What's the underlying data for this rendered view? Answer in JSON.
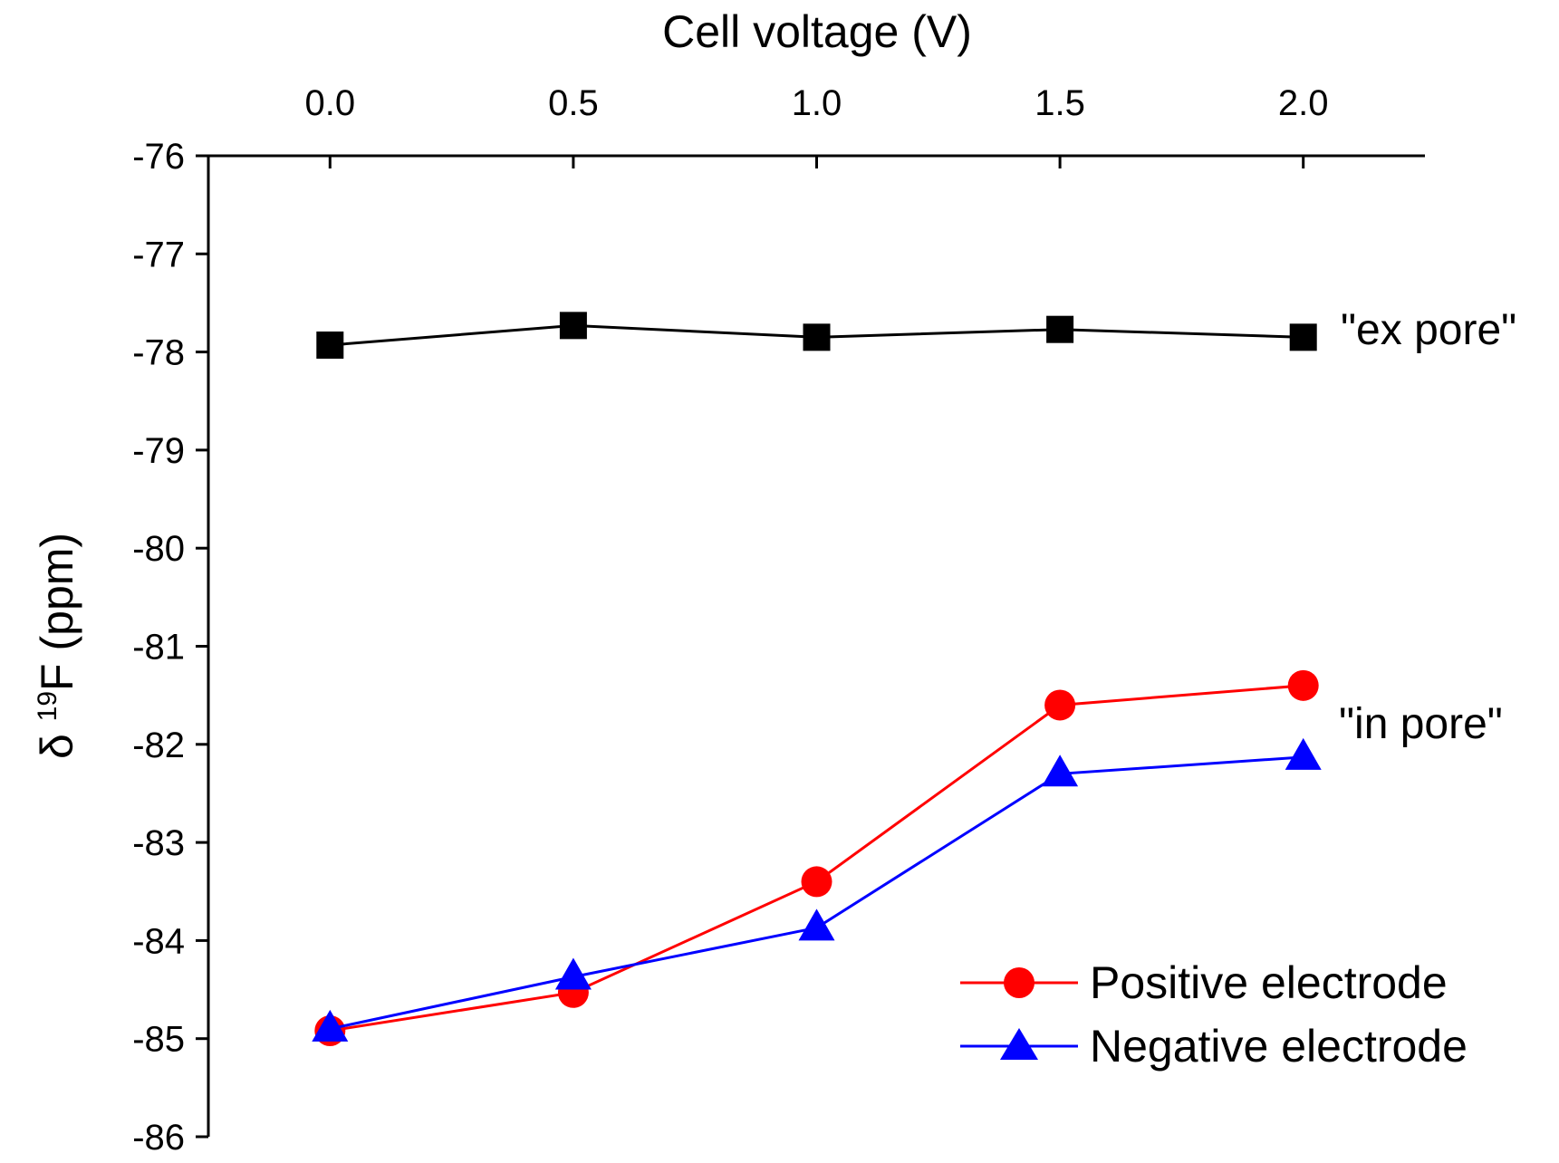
{
  "chart_data": {
    "type": "line",
    "xlabel": "Cell voltage (V)",
    "ylabel_prefix": "δ ",
    "ylabel_sup": "19",
    "ylabel_main": "F (ppm)",
    "xlim": [
      -0.25,
      2.25
    ],
    "ylim": [
      -86,
      -76
    ],
    "x_ticks": [
      "0.0",
      "0.5",
      "1.0",
      "1.5",
      "2.0"
    ],
    "y_ticks": [
      "-76",
      "-77",
      "-78",
      "-79",
      "-80",
      "-81",
      "-82",
      "-83",
      "-84",
      "-85",
      "-86"
    ],
    "x": [
      0.0,
      0.5,
      1.0,
      1.5,
      2.0
    ],
    "series": [
      {
        "values": [
          -77.93,
          -77.73,
          -77.85,
          -77.77,
          -77.85
        ],
        "color": "#000000",
        "marker": "square"
      },
      {
        "name": "Positive electrode",
        "values": [
          -84.92,
          -84.53,
          -83.4,
          -81.6,
          -81.4
        ],
        "color": "#ff0000",
        "marker": "circle"
      },
      {
        "name": "Negative electrode",
        "values": [
          -84.9,
          -84.37,
          -83.87,
          -82.3,
          -82.13
        ],
        "color": "#0000ff",
        "marker": "triangle"
      }
    ],
    "annotations": [
      "\"ex pore\"",
      "\"in pore\""
    ],
    "grid": false,
    "legend_position": "bottom-right"
  }
}
